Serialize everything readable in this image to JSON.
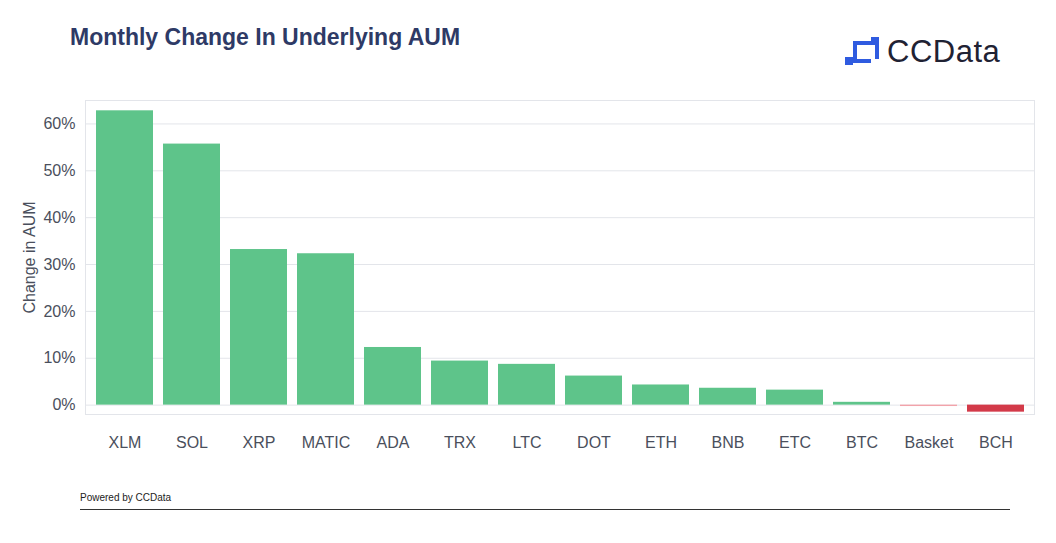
{
  "chart_data": {
    "type": "bar",
    "title": "Monthly Change In Underlying AUM",
    "logo_text": "CCData",
    "caption": "Powered by CCData",
    "y_label": "Change in AUM",
    "categories": [
      "XLM",
      "SOL",
      "XRP",
      "MATIC",
      "ADA",
      "TRX",
      "LTC",
      "DOT",
      "ETH",
      "BNB",
      "ETC",
      "BTC",
      "Basket",
      "BCH"
    ],
    "values": [
      62.8,
      55.7,
      33.2,
      32.3,
      12.3,
      9.4,
      8.7,
      6.2,
      4.3,
      3.6,
      3.2,
      0.6,
      -0.3,
      -1.5
    ],
    "colors": [
      "#5ec48a",
      "#5ec48a",
      "#5ec48a",
      "#5ec48a",
      "#5ec48a",
      "#5ec48a",
      "#5ec48a",
      "#5ec48a",
      "#5ec48a",
      "#5ec48a",
      "#5ec48a",
      "#5ec48a",
      "#f2a3aa",
      "#d33a49"
    ],
    "ylim": [
      -2,
      65
    ],
    "yticks": [
      {
        "value": 0,
        "label": "0%"
      },
      {
        "value": 10,
        "label": "10%"
      },
      {
        "value": 20,
        "label": "20%"
      },
      {
        "value": 30,
        "label": "30%"
      },
      {
        "value": 40,
        "label": "40%"
      },
      {
        "value": 50,
        "label": "50%"
      },
      {
        "value": 60,
        "label": "60%"
      }
    ],
    "grid": true,
    "data_labels": false
  }
}
